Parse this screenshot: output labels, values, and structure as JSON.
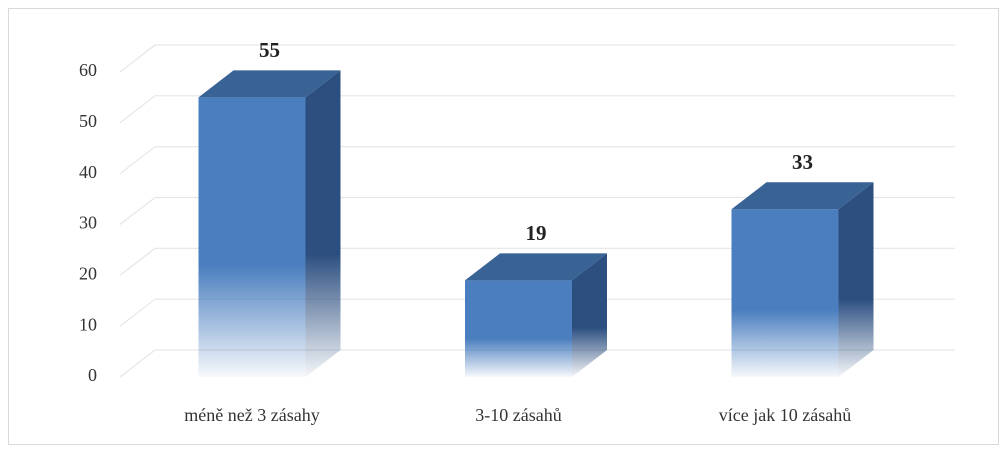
{
  "chart_data": {
    "type": "bar3d",
    "categories": [
      "méně než 3 zásahy",
      "3-10 zásahů",
      "více jak 10 zásahů"
    ],
    "values": [
      55,
      19,
      33
    ],
    "color": "#4a7ebf",
    "ylim": [
      0,
      60
    ],
    "yticks": [
      0,
      10,
      20,
      30,
      40,
      50,
      60
    ],
    "grid": true
  }
}
